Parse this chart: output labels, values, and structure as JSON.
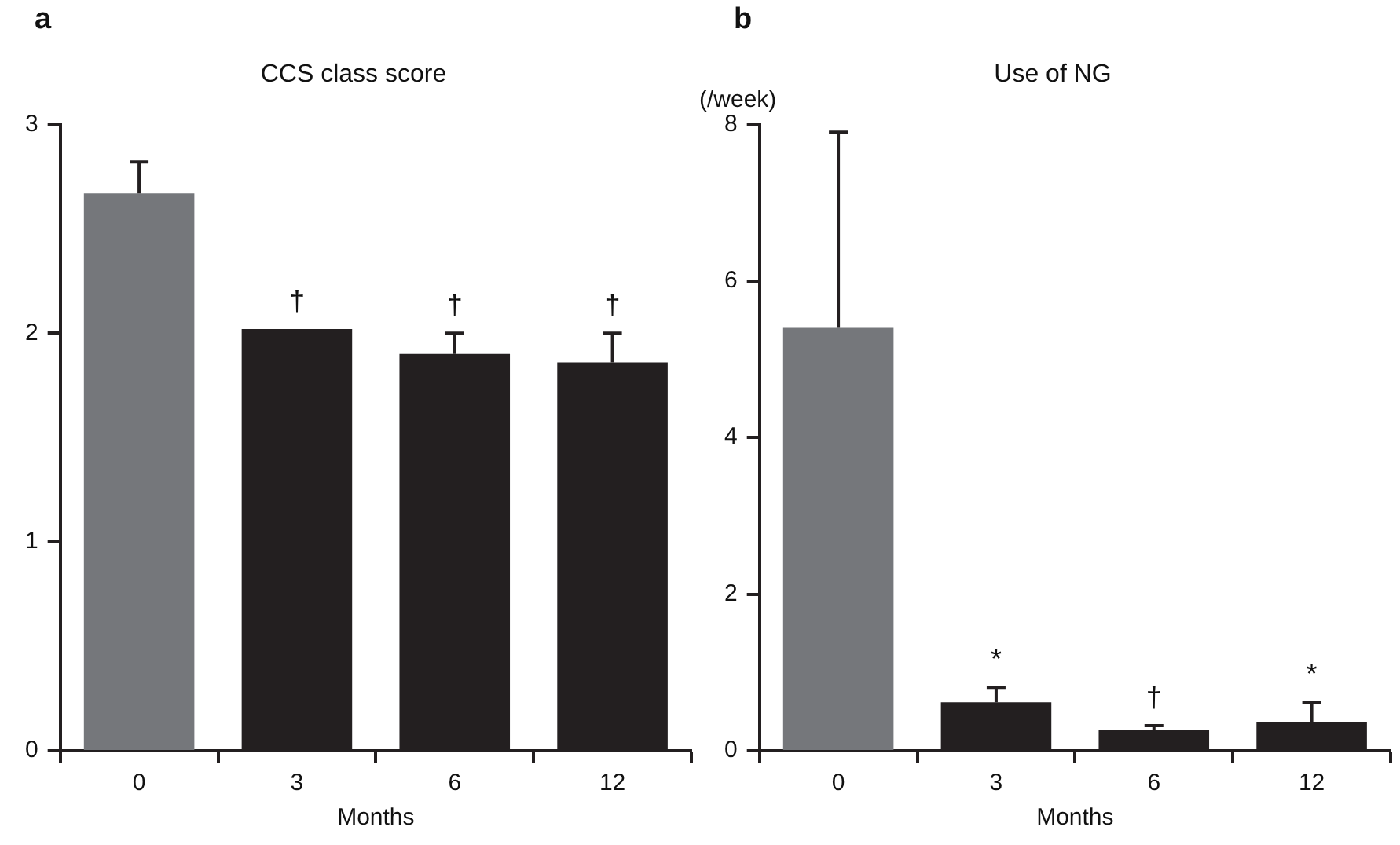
{
  "chart_data": [
    {
      "type": "bar",
      "title": "CCS class score",
      "xlabel": "Months",
      "categories": [
        "0",
        "3",
        "6",
        "12"
      ],
      "values": [
        2.67,
        2.02,
        1.9,
        1.86
      ],
      "colors": [
        "#75777b",
        "#231f20",
        "#231f20",
        "#231f20"
      ],
      "errors": [
        [
          2.67,
          2.82
        ],
        null,
        [
          1.9,
          2.0
        ],
        [
          1.86,
          2.0
        ]
      ],
      "ylim": [
        0,
        3
      ],
      "yticks": [
        0,
        1,
        2,
        3
      ],
      "grid": false,
      "legend": false,
      "annotations": [
        "a",
        "†",
        "†",
        "†"
      ]
    },
    {
      "type": "bar",
      "title": "Use of NG",
      "ylabel": "(/week)",
      "xlabel": "Months",
      "categories": [
        "0",
        "3",
        "6",
        "12"
      ],
      "values": [
        5.4,
        0.62,
        0.26,
        0.37
      ],
      "colors": [
        "#75777b",
        "#231f20",
        "#231f20",
        "#231f20"
      ],
      "errors": [
        [
          5.4,
          7.9
        ],
        [
          0.62,
          0.81
        ],
        [
          0.26,
          0.32
        ],
        [
          0.37,
          0.62
        ]
      ],
      "ylim": [
        0,
        8
      ],
      "yticks": [
        0,
        2,
        4,
        6,
        8
      ],
      "grid": false,
      "legend": false,
      "annotations": [
        "b",
        "*",
        "†",
        "*"
      ]
    }
  ]
}
